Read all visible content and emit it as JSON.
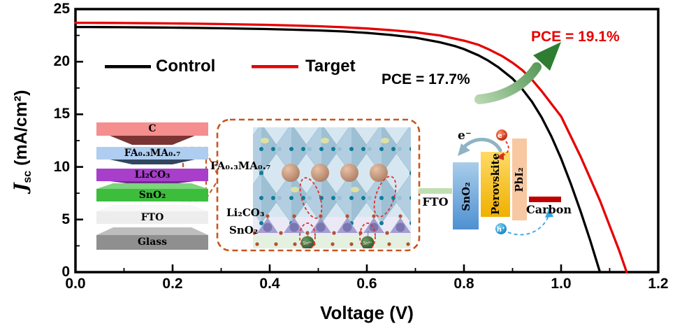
{
  "figure": {
    "background": "#ffffff"
  },
  "axes": {
    "x": {
      "label": "Voltage (V)",
      "tick_labels": [
        "0.0",
        "0.2",
        "0.4",
        "0.6",
        "0.8",
        "1.0",
        "1.2"
      ],
      "min": 0,
      "max": 1.2
    },
    "y": {
      "label_symbol": "J",
      "label_subscript": "sc",
      "label_unit": " (mA/cm²)",
      "tick_labels": [
        "0",
        "5",
        "10",
        "15",
        "20",
        "25"
      ],
      "min": 0,
      "max": 25
    }
  },
  "legend": {
    "control": "Control",
    "target": "Target"
  },
  "annotations": {
    "control_pce": "PCE = 17.7%",
    "target_pce": "PCE = 19.1%"
  },
  "chart_data": {
    "type": "line",
    "title": "",
    "xlabel": "Voltage (V)",
    "ylabel": "Jsc (mA/cm²)",
    "xlim": [
      0,
      1.2
    ],
    "ylim": [
      0,
      25
    ],
    "grid": false,
    "legend_position": "upper-left-inside",
    "series": [
      {
        "name": "Control",
        "color": "#000000",
        "voc_v": 1.08,
        "jsc_ma_cm2": 23.3,
        "pce_percent": 17.7,
        "points": [
          [
            0,
            23.3
          ],
          [
            0.05,
            23.29
          ],
          [
            0.1,
            23.28
          ],
          [
            0.15,
            23.26
          ],
          [
            0.2,
            23.24
          ],
          [
            0.25,
            23.21
          ],
          [
            0.3,
            23.18
          ],
          [
            0.35,
            23.14
          ],
          [
            0.4,
            23.1
          ],
          [
            0.45,
            23.04
          ],
          [
            0.5,
            22.97
          ],
          [
            0.55,
            22.88
          ],
          [
            0.6,
            22.74
          ],
          [
            0.65,
            22.54
          ],
          [
            0.7,
            22.28
          ],
          [
            0.75,
            21.85
          ],
          [
            0.78,
            21.5
          ],
          [
            0.8,
            21.2
          ],
          [
            0.83,
            20.6
          ],
          [
            0.85,
            20.1
          ],
          [
            0.87,
            19.5
          ],
          [
            0.9,
            18.4
          ],
          [
            0.92,
            17.4
          ],
          [
            0.94,
            16.2
          ],
          [
            0.96,
            14.7
          ],
          [
            0.98,
            12.9
          ],
          [
            1.0,
            10.8
          ],
          [
            1.02,
            8.4
          ],
          [
            1.04,
            5.8
          ],
          [
            1.06,
            3.0
          ],
          [
            1.08,
            0
          ]
        ]
      },
      {
        "name": "Target",
        "color": "#e60000",
        "voc_v": 1.14,
        "jsc_ma_cm2": 23.7,
        "pce_percent": 19.1,
        "points": [
          [
            0,
            23.7
          ],
          [
            0.05,
            23.69
          ],
          [
            0.1,
            23.68
          ],
          [
            0.15,
            23.66
          ],
          [
            0.2,
            23.64
          ],
          [
            0.25,
            23.61
          ],
          [
            0.3,
            23.58
          ],
          [
            0.35,
            23.54
          ],
          [
            0.4,
            23.5
          ],
          [
            0.45,
            23.44
          ],
          [
            0.5,
            23.37
          ],
          [
            0.55,
            23.28
          ],
          [
            0.6,
            23.16
          ],
          [
            0.65,
            23.0
          ],
          [
            0.7,
            22.8
          ],
          [
            0.75,
            22.5
          ],
          [
            0.8,
            22.0
          ],
          [
            0.83,
            21.6
          ],
          [
            0.85,
            21.2
          ],
          [
            0.88,
            20.5
          ],
          [
            0.9,
            19.9
          ],
          [
            0.92,
            19.2
          ],
          [
            0.94,
            18.3
          ],
          [
            0.96,
            17.2
          ],
          [
            0.98,
            16.0
          ],
          [
            1.0,
            14.8
          ],
          [
            1.02,
            12.9
          ],
          [
            1.04,
            11.0
          ],
          [
            1.06,
            8.9
          ],
          [
            1.08,
            6.8
          ],
          [
            1.1,
            4.4
          ],
          [
            1.12,
            2.0
          ],
          [
            1.135,
            0
          ]
        ]
      }
    ]
  },
  "device_stack": {
    "layers": [
      {
        "label": "C",
        "color": "#f58e8e",
        "shade": "#7a3434"
      },
      {
        "label": "FA₀.₃MA₀.₇",
        "color": "#aecdf0",
        "shade": "#31465f"
      },
      {
        "label": "Li₂CO₃",
        "color": "#a73fcb",
        "shade": "#6e2e86"
      },
      {
        "label": "SnO₂",
        "color": "#3cbe3c",
        "shade": "#7cd47c"
      },
      {
        "label": "FTO",
        "color": "#ededed",
        "shade": "#f8f8f8"
      },
      {
        "label": "Glass",
        "color": "#8f8f8f",
        "shade": "#bdbdbd"
      }
    ]
  },
  "interface_inset": {
    "perovskite_label": "FA₀.₃MA₀.₇",
    "licarbonate_label": "Li₂CO₃",
    "tinoxide_label": "SnO₂",
    "ion_label": "Sn⁴⁺",
    "box_color": "#c8551e"
  },
  "band_diagram": {
    "fto_label": "FTO",
    "sno2_label": "SnO₂",
    "perovskite_label": "Perovskite",
    "pbi2_label": "PbI₂",
    "carbon_label": "Carbon",
    "electron_label": "e⁻",
    "hole_label": "h⁺",
    "colors": {
      "fto_bar": "#bfdfb0",
      "sno2_top": "#a9cdea",
      "sno2_bottom": "#4e90d2",
      "perovskite_top": "#ffda66",
      "perovskite_bottom": "#efb000",
      "pbi2": "#f7c8a2",
      "carbon_bar": "#c00000",
      "electron_circle": "#cc2a00",
      "hole_circle": "#1e90d6",
      "electron_arrow": "#8fb4c6"
    }
  },
  "crystal_colors": {
    "background": "#d7e7f1",
    "octahedron": "#aecbdd",
    "octahedron_dark": "#86afc6",
    "vertex_dot": "#0f7c9c",
    "cation": "#c2937c",
    "lavender_band": "#eae9f5",
    "tetra": "#9a97cb",
    "tetra_core": "#7a76b0",
    "oxygen_dot": "#b5522a",
    "green_band": "#e4f1e0",
    "tin_sphere": "#3f6f3a",
    "defect_ellipse": "#e03030"
  },
  "colors": {
    "control": "#000000",
    "target": "#e60000",
    "frame": "#000000",
    "arrow_dark": "#2e7d32",
    "arrow_light": "#b9d8b2"
  }
}
